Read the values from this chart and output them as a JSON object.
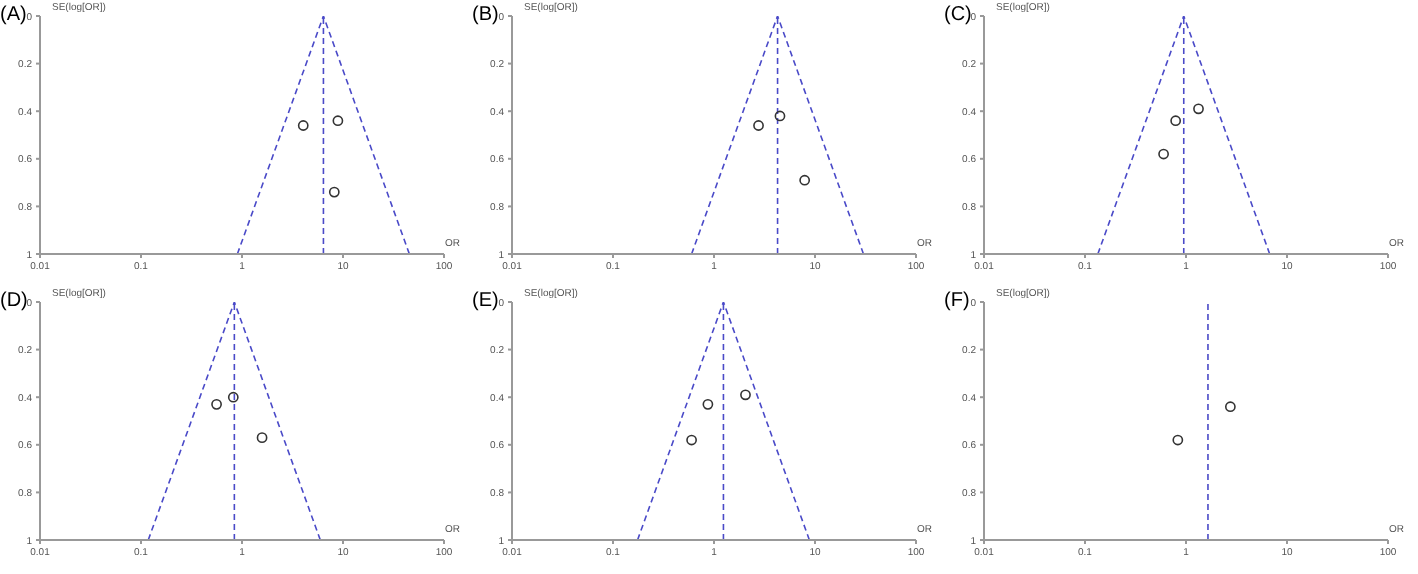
{
  "chart_data": [
    {
      "type": "scatter",
      "title": "(A)",
      "xlabel": "OR",
      "ylabel": "SE(log[OR])",
      "log": "x",
      "xlim": [
        0.01,
        100
      ],
      "xticks": [
        0.01,
        0.1,
        1,
        10,
        100
      ],
      "ylim": [
        1,
        0
      ],
      "yticks": [
        0,
        0.2,
        0.4,
        0.6,
        0.8,
        1
      ],
      "marker": "circle",
      "ref_lines": [
        {
          "axis": "x",
          "value": 6.4,
          "color": "#4a4ac8",
          "line_style": "dashed"
        }
      ],
      "series": [
        {
          "color": "#333333",
          "x": [
            4.04,
            8.9,
            8.2
          ],
          "values": [
            0.46,
            0.44,
            0.74
          ]
        },
        {
          "type": "line",
          "color": "#4a4ac8",
          "line_style": "dashed",
          "marker": "none",
          "x": [
            0.9,
            6.4,
            45.4
          ],
          "values": [
            1,
            0,
            1
          ]
        }
      ]
    },
    {
      "type": "scatter",
      "title": "(B)",
      "xlabel": "OR",
      "ylabel": "SE(log[OR])",
      "log": "x",
      "xlim": [
        0.01,
        100
      ],
      "xticks": [
        0.01,
        0.1,
        1,
        10,
        100
      ],
      "ylim": [
        1,
        0
      ],
      "yticks": [
        0,
        0.2,
        0.4,
        0.6,
        0.8,
        1
      ],
      "marker": "circle",
      "ref_lines": [
        {
          "axis": "x",
          "value": 4.26,
          "color": "#4a4ac8",
          "line_style": "dashed"
        }
      ],
      "series": [
        {
          "color": "#333333",
          "x": [
            2.76,
            4.5,
            7.9
          ],
          "values": [
            0.46,
            0.42,
            0.69
          ]
        },
        {
          "type": "line",
          "color": "#4a4ac8",
          "line_style": "dashed",
          "marker": "none",
          "x": [
            0.6,
            4.26,
            30.2
          ],
          "values": [
            1,
            0,
            1
          ]
        }
      ]
    },
    {
      "type": "scatter",
      "title": "(C)",
      "xlabel": "OR",
      "ylabel": "SE(log[OR])",
      "log": "x",
      "xlim": [
        0.01,
        100
      ],
      "xticks": [
        0.01,
        0.1,
        1,
        10,
        100
      ],
      "ylim": [
        1,
        0
      ],
      "yticks": [
        0,
        0.2,
        0.4,
        0.6,
        0.8,
        1
      ],
      "marker": "circle",
      "ref_lines": [
        {
          "axis": "x",
          "value": 0.95,
          "color": "#4a4ac8",
          "line_style": "dashed"
        }
      ],
      "series": [
        {
          "color": "#333333",
          "x": [
            1.33,
            0.79,
            0.6
          ],
          "values": [
            0.39,
            0.44,
            0.58
          ]
        },
        {
          "type": "line",
          "color": "#4a4ac8",
          "line_style": "dashed",
          "marker": "none",
          "x": [
            0.134,
            0.95,
            6.74
          ],
          "values": [
            1,
            0,
            1
          ]
        }
      ]
    },
    {
      "type": "scatter",
      "title": "(D)",
      "xlabel": "OR",
      "ylabel": "SE(log[OR])",
      "log": "x",
      "xlim": [
        0.01,
        100
      ],
      "xticks": [
        0.01,
        0.1,
        1,
        10,
        100
      ],
      "ylim": [
        1,
        0
      ],
      "yticks": [
        0,
        0.2,
        0.4,
        0.6,
        0.8,
        1
      ],
      "marker": "circle",
      "ref_lines": [
        {
          "axis": "x",
          "value": 0.84,
          "color": "#4a4ac8",
          "line_style": "dashed"
        }
      ],
      "series": [
        {
          "color": "#333333",
          "x": [
            0.56,
            0.82,
            1.58
          ],
          "values": [
            0.43,
            0.4,
            0.57
          ]
        },
        {
          "type": "line",
          "color": "#4a4ac8",
          "line_style": "dashed",
          "marker": "none",
          "x": [
            0.118,
            0.84,
            5.96
          ],
          "values": [
            1,
            0,
            1
          ]
        }
      ]
    },
    {
      "type": "scatter",
      "title": "(E)",
      "xlabel": "OR",
      "ylabel": "SE(log[OR])",
      "log": "x",
      "xlim": [
        0.01,
        100
      ],
      "xticks": [
        0.01,
        0.1,
        1,
        10,
        100
      ],
      "ylim": [
        1,
        0
      ],
      "yticks": [
        0,
        0.2,
        0.4,
        0.6,
        0.8,
        1
      ],
      "marker": "circle",
      "ref_lines": [
        {
          "axis": "x",
          "value": 1.24,
          "color": "#4a4ac8",
          "line_style": "dashed"
        }
      ],
      "series": [
        {
          "color": "#333333",
          "x": [
            0.87,
            2.05,
            0.6
          ],
          "values": [
            0.43,
            0.39,
            0.58
          ]
        },
        {
          "type": "line",
          "color": "#4a4ac8",
          "line_style": "dashed",
          "marker": "none",
          "x": [
            0.175,
            1.24,
            8.8
          ],
          "values": [
            1,
            0,
            1
          ]
        }
      ]
    },
    {
      "type": "scatter",
      "title": "(F)",
      "xlabel": "OR",
      "ylabel": "SE(log[OR])",
      "log": "x",
      "xlim": [
        0.01,
        100
      ],
      "xticks": [
        0.01,
        0.1,
        1,
        10,
        100
      ],
      "ylim": [
        1,
        0
      ],
      "yticks": [
        0,
        0.2,
        0.4,
        0.6,
        0.8,
        1
      ],
      "marker": "circle",
      "ref_lines": [
        {
          "axis": "x",
          "value": 1.65,
          "color": "#4a4ac8",
          "line_style": "dashed"
        }
      ],
      "series": [
        {
          "color": "#333333",
          "x": [
            2.75,
            0.83
          ],
          "values": [
            0.44,
            0.58
          ]
        }
      ]
    }
  ]
}
